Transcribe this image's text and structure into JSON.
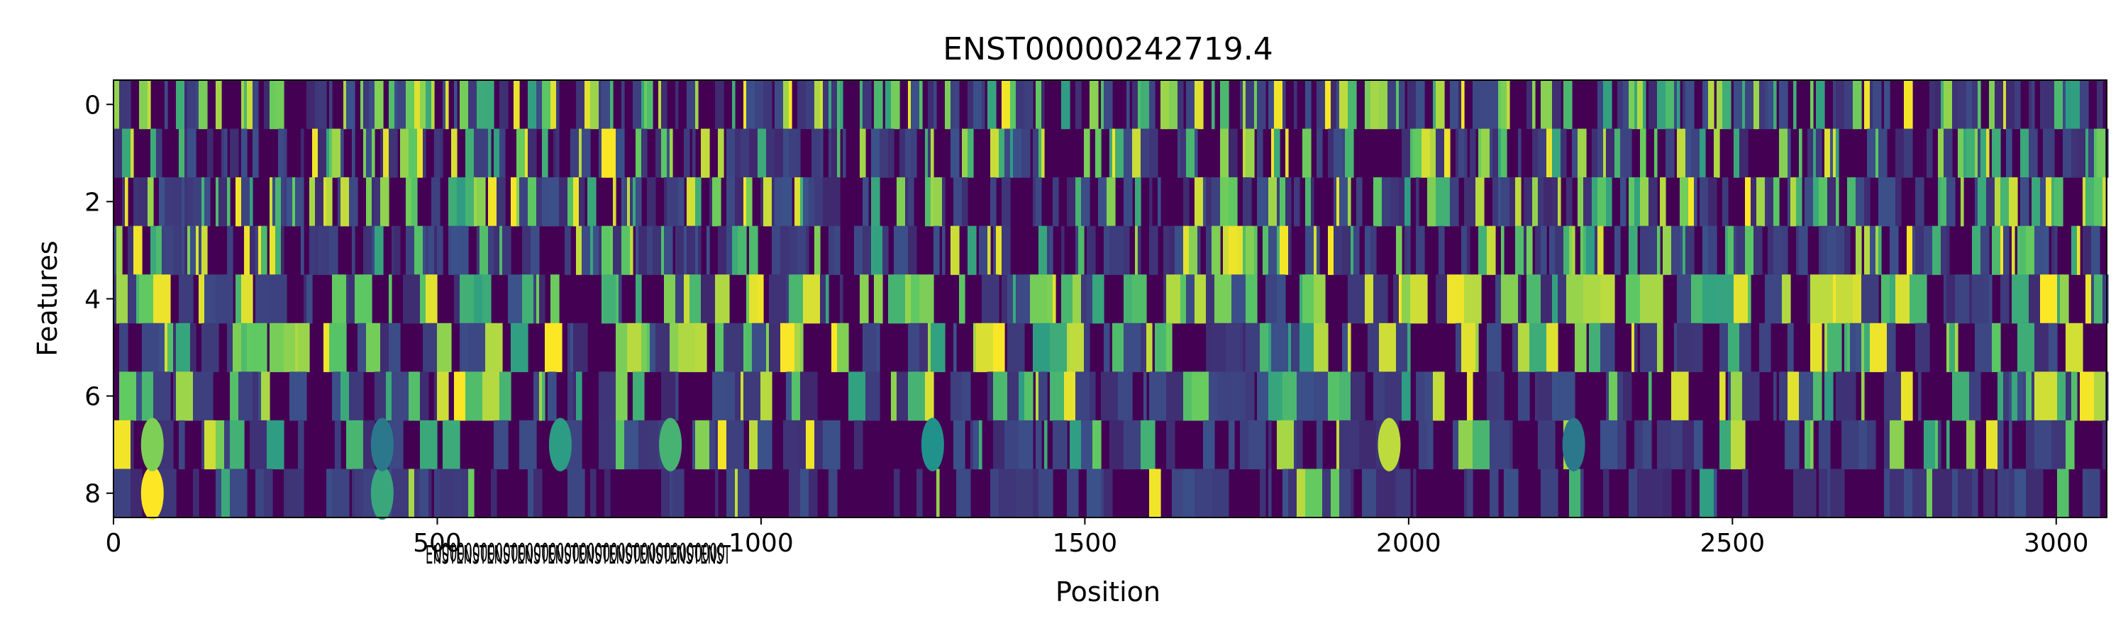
{
  "chart_data": {
    "type": "heatmap",
    "title": "ENST00000242719.4",
    "xlabel": "Position",
    "ylabel": "Features",
    "xlim": [
      0,
      3078
    ],
    "ylim": [
      8.5,
      -0.5
    ],
    "rows": 9,
    "colormap": "viridis",
    "value_range": [
      0,
      1
    ],
    "x_ticks": [
      0,
      500,
      1000,
      1500,
      2000,
      2500,
      3000
    ],
    "y_ticks": [
      0,
      2,
      4,
      6,
      8
    ],
    "grid": false,
    "row_profiles": [
      {
        "feature": 0,
        "mean_intensity": 0.35,
        "pattern": "dense narrow stripes"
      },
      {
        "feature": 1,
        "mean_intensity": 0.28,
        "pattern": "dense narrow stripes"
      },
      {
        "feature": 2,
        "mean_intensity": 0.3,
        "pattern": "dense narrow stripes"
      },
      {
        "feature": 3,
        "mean_intensity": 0.22,
        "pattern": "sparse stripes"
      },
      {
        "feature": 4,
        "mean_intensity": 0.45,
        "pattern": "bright stripes"
      },
      {
        "feature": 5,
        "mean_intensity": 0.4,
        "pattern": "bright blocks"
      },
      {
        "feature": 6,
        "mean_intensity": 0.3,
        "pattern": "bright blocks"
      },
      {
        "feature": 7,
        "mean_intensity": 0.15,
        "pattern": "faint diffuse blobs"
      },
      {
        "feature": 8,
        "mean_intensity": 0.05,
        "pattern": "mostly low"
      }
    ],
    "highlights": [
      {
        "x": 60,
        "row": 8,
        "value": 1.0
      },
      {
        "x": 60,
        "row": 7,
        "value": 0.8
      },
      {
        "x": 415,
        "row": 8,
        "value": 0.6
      },
      {
        "x": 415,
        "row": 7,
        "value": 0.4
      },
      {
        "x": 690,
        "row": 7,
        "value": 0.55
      },
      {
        "x": 860,
        "row": 7,
        "value": 0.65
      },
      {
        "x": 1265,
        "row": 7,
        "value": 0.5
      },
      {
        "x": 1970,
        "row": 7,
        "value": 0.9
      },
      {
        "x": 2255,
        "row": 7,
        "value": 0.4
      }
    ]
  }
}
